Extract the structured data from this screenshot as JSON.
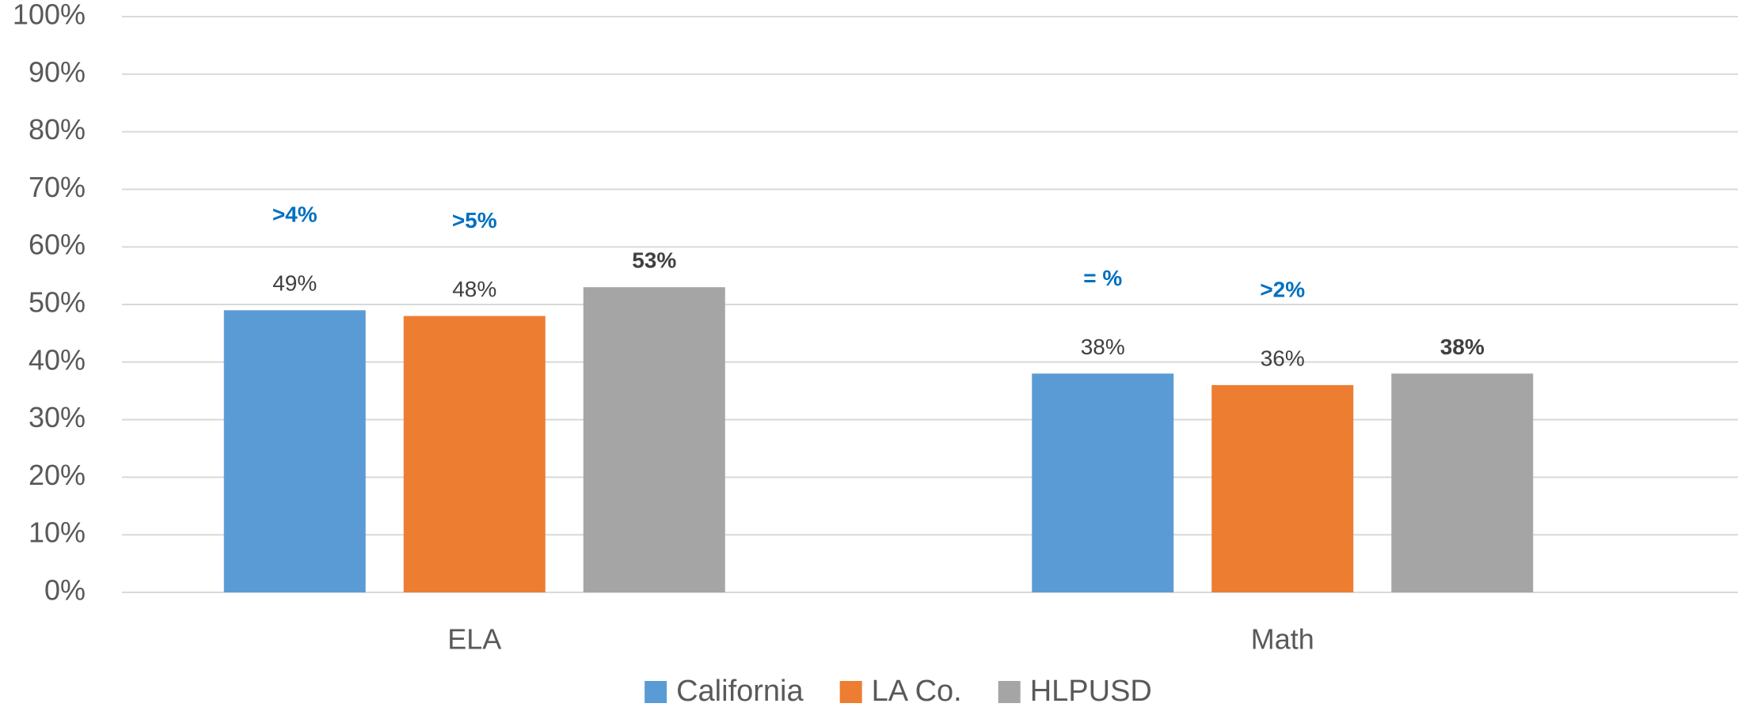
{
  "chart_data": {
    "type": "bar",
    "categories": [
      "ELA",
      "Math"
    ],
    "series": [
      {
        "name": "California",
        "color": "#5b9bd5",
        "values": [
          49,
          38
        ],
        "value_labels": [
          "49%",
          "38%"
        ],
        "annotations": [
          ">4%",
          "= %"
        ]
      },
      {
        "name": "LA Co.",
        "color": "#ed7d31",
        "values": [
          48,
          36
        ],
        "value_labels": [
          "48%",
          "36%"
        ],
        "annotations": [
          ">5%",
          ">2%"
        ]
      },
      {
        "name": "HLPUSD",
        "color": "#a5a5a5",
        "values": [
          53,
          38
        ],
        "value_labels": [
          "53%",
          "38%"
        ],
        "bold_labels": true
      }
    ],
    "ylim": [
      0,
      100
    ],
    "yticks": [
      {
        "value": 0,
        "label": "0%"
      },
      {
        "value": 10,
        "label": "10%"
      },
      {
        "value": 20,
        "label": "20%"
      },
      {
        "value": 30,
        "label": "30%"
      },
      {
        "value": 40,
        "label": "40%"
      },
      {
        "value": 50,
        "label": "50%"
      },
      {
        "value": 60,
        "label": "60%"
      },
      {
        "value": 70,
        "label": "70%"
      },
      {
        "value": 80,
        "label": "80%"
      },
      {
        "value": 90,
        "label": "90%"
      },
      {
        "value": 100,
        "label": "100%"
      }
    ],
    "grid": true,
    "legend": "bottom"
  }
}
